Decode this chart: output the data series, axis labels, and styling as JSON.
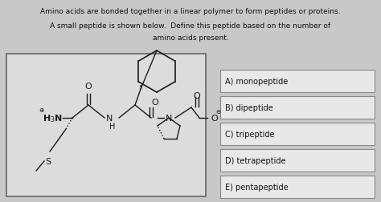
{
  "title_line1": "Amino acids are bonded together in a linear polymer to form peptides or proteins.",
  "title_line2": "A small peptide is shown below.  Define this peptide based on the number of",
  "title_line3": "amino acids present.",
  "choices": [
    "A) monopeptide",
    "B) dipeptide",
    "C) tripeptide",
    "D) tetrapeptide",
    "E) pentapeptide"
  ],
  "bg_color": "#c8c8c8",
  "struct_box_bg": "#dcdcdc",
  "struct_box_edge": "#666666",
  "choice_box_bg": "#e8e8e8",
  "choice_box_border": "#888888",
  "text_color": "#111111",
  "title_fontsize": 6.5,
  "choice_fontsize": 7.0,
  "chem_color": "#1a1a1a"
}
